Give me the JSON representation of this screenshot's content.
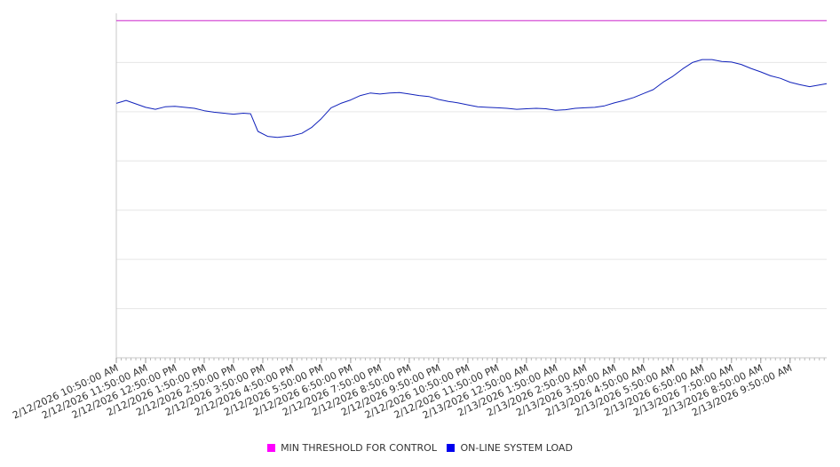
{
  "chart_data": {
    "type": "line",
    "title": "",
    "xlabel": "",
    "ylabel": "",
    "grid": true,
    "legend_position": "bottom",
    "x_tick_labels": [
      "2/12/2026 10:50:00 AM",
      "2/12/2026 11:50:00 AM",
      "2/12/2026 12:50:00 PM",
      "2/12/2026 1:50:00 PM",
      "2/12/2026 2:50:00 PM",
      "2/12/2026 3:50:00 PM",
      "2/12/2026 4:50:00 PM",
      "2/12/2026 5:50:00 PM",
      "2/12/2026 6:50:00 PM",
      "2/12/2026 7:50:00 PM",
      "2/12/2026 8:50:00 PM",
      "2/12/2026 9:50:00 PM",
      "2/12/2026 10:50:00 PM",
      "2/12/2026 11:50:00 PM",
      "2/13/2026 12:50:00 AM",
      "2/13/2026 1:50:00 AM",
      "2/13/2026 2:50:00 AM",
      "2/13/2026 3:50:00 AM",
      "2/13/2026 4:50:00 AM",
      "2/13/2026 5:50:00 AM",
      "2/13/2026 6:50:00 AM",
      "2/13/2026 7:50:00 AM",
      "2/13/2026 8:50:00 AM",
      "2/13/2026 9:50:00 AM"
    ],
    "x_range": [
      "2/12/2026 10:50:00 AM",
      "2/13/2026 11:05:00 AM"
    ],
    "ylim": [
      0,
      7000
    ],
    "y_gridlines": [
      1000,
      2000,
      3000,
      4000,
      5000,
      6000
    ],
    "series": [
      {
        "name": "MIN THRESHOLD FOR CONTROL",
        "color": "#cc22cc",
        "swatch_color": "#ff00ff",
        "points": [
          {
            "x": "2/12/2026 10:50:00 AM",
            "y": 6850
          },
          {
            "x": "2/13/2026 11:05:00 AM",
            "y": 6850
          }
        ]
      },
      {
        "name": "ON-LINE SYSTEM LOAD",
        "color": "#1122bb",
        "swatch_color": "#0000ee",
        "points": [
          {
            "x": "2/12/2026 10:50:00 AM",
            "y": 5170
          },
          {
            "x": "2/12/2026 11:10:00 AM",
            "y": 5230
          },
          {
            "x": "2/12/2026 11:30:00 AM",
            "y": 5160
          },
          {
            "x": "2/12/2026 11:50:00 AM",
            "y": 5090
          },
          {
            "x": "2/12/2026 12:10:00 PM",
            "y": 5050
          },
          {
            "x": "2/12/2026 12:30:00 PM",
            "y": 5100
          },
          {
            "x": "2/12/2026 12:50:00 PM",
            "y": 5110
          },
          {
            "x": "2/12/2026 1:10:00 PM",
            "y": 5090
          },
          {
            "x": "2/12/2026 1:30:00 PM",
            "y": 5070
          },
          {
            "x": "2/12/2026 1:50:00 PM",
            "y": 5020
          },
          {
            "x": "2/12/2026 2:10:00 PM",
            "y": 4990
          },
          {
            "x": "2/12/2026 2:30:00 PM",
            "y": 4970
          },
          {
            "x": "2/12/2026 2:50:00 PM",
            "y": 4950
          },
          {
            "x": "2/12/2026 3:10:00 PM",
            "y": 4970
          },
          {
            "x": "2/12/2026 3:25:00 PM",
            "y": 4960
          },
          {
            "x": "2/12/2026 3:40:00 PM",
            "y": 4600
          },
          {
            "x": "2/12/2026 4:00:00 PM",
            "y": 4500
          },
          {
            "x": "2/12/2026 4:20:00 PM",
            "y": 4480
          },
          {
            "x": "2/12/2026 4:50:00 PM",
            "y": 4510
          },
          {
            "x": "2/12/2026 5:10:00 PM",
            "y": 4560
          },
          {
            "x": "2/12/2026 5:30:00 PM",
            "y": 4680
          },
          {
            "x": "2/12/2026 5:50:00 PM",
            "y": 4860
          },
          {
            "x": "2/12/2026 6:10:00 PM",
            "y": 5080
          },
          {
            "x": "2/12/2026 6:30:00 PM",
            "y": 5170
          },
          {
            "x": "2/12/2026 6:50:00 PM",
            "y": 5240
          },
          {
            "x": "2/12/2026 7:10:00 PM",
            "y": 5330
          },
          {
            "x": "2/12/2026 7:30:00 PM",
            "y": 5380
          },
          {
            "x": "2/12/2026 7:50:00 PM",
            "y": 5360
          },
          {
            "x": "2/12/2026 8:10:00 PM",
            "y": 5380
          },
          {
            "x": "2/12/2026 8:30:00 PM",
            "y": 5390
          },
          {
            "x": "2/12/2026 8:50:00 PM",
            "y": 5360
          },
          {
            "x": "2/12/2026 9:10:00 PM",
            "y": 5330
          },
          {
            "x": "2/12/2026 9:30:00 PM",
            "y": 5310
          },
          {
            "x": "2/12/2026 9:50:00 PM",
            "y": 5250
          },
          {
            "x": "2/12/2026 10:10:00 PM",
            "y": 5210
          },
          {
            "x": "2/12/2026 10:30:00 PM",
            "y": 5180
          },
          {
            "x": "2/12/2026 10:50:00 PM",
            "y": 5140
          },
          {
            "x": "2/12/2026 11:10:00 PM",
            "y": 5100
          },
          {
            "x": "2/12/2026 11:30:00 PM",
            "y": 5090
          },
          {
            "x": "2/12/2026 11:50:00 PM",
            "y": 5080
          },
          {
            "x": "2/13/2026 12:10:00 AM",
            "y": 5070
          },
          {
            "x": "2/13/2026 12:30:00 AM",
            "y": 5050
          },
          {
            "x": "2/13/2026 12:50:00 AM",
            "y": 5060
          },
          {
            "x": "2/13/2026 1:10:00 AM",
            "y": 5070
          },
          {
            "x": "2/13/2026 1:30:00 AM",
            "y": 5060
          },
          {
            "x": "2/13/2026 1:50:00 AM",
            "y": 5030
          },
          {
            "x": "2/13/2026 2:10:00 AM",
            "y": 5040
          },
          {
            "x": "2/13/2026 2:30:00 AM",
            "y": 5070
          },
          {
            "x": "2/13/2026 2:50:00 AM",
            "y": 5080
          },
          {
            "x": "2/13/2026 3:10:00 AM",
            "y": 5090
          },
          {
            "x": "2/13/2026 3:30:00 AM",
            "y": 5120
          },
          {
            "x": "2/13/2026 3:50:00 AM",
            "y": 5180
          },
          {
            "x": "2/13/2026 4:10:00 AM",
            "y": 5230
          },
          {
            "x": "2/13/2026 4:30:00 AM",
            "y": 5290
          },
          {
            "x": "2/13/2026 4:50:00 AM",
            "y": 5370
          },
          {
            "x": "2/13/2026 5:10:00 AM",
            "y": 5450
          },
          {
            "x": "2/13/2026 5:30:00 AM",
            "y": 5600
          },
          {
            "x": "2/13/2026 5:50:00 AM",
            "y": 5720
          },
          {
            "x": "2/13/2026 6:10:00 AM",
            "y": 5870
          },
          {
            "x": "2/13/2026 6:30:00 AM",
            "y": 6000
          },
          {
            "x": "2/13/2026 6:50:00 AM",
            "y": 6060
          },
          {
            "x": "2/13/2026 7:10:00 AM",
            "y": 6060
          },
          {
            "x": "2/13/2026 7:30:00 AM",
            "y": 6020
          },
          {
            "x": "2/13/2026 7:50:00 AM",
            "y": 6010
          },
          {
            "x": "2/13/2026 8:10:00 AM",
            "y": 5960
          },
          {
            "x": "2/13/2026 8:30:00 AM",
            "y": 5880
          },
          {
            "x": "2/13/2026 8:50:00 AM",
            "y": 5810
          },
          {
            "x": "2/13/2026 9:10:00 AM",
            "y": 5730
          },
          {
            "x": "2/13/2026 9:30:00 AM",
            "y": 5680
          },
          {
            "x": "2/13/2026 9:50:00 AM",
            "y": 5600
          },
          {
            "x": "2/13/2026 10:10:00 AM",
            "y": 5550
          },
          {
            "x": "2/13/2026 10:30:00 AM",
            "y": 5510
          },
          {
            "x": "2/13/2026 11:05:00 AM",
            "y": 5570
          }
        ]
      }
    ]
  }
}
